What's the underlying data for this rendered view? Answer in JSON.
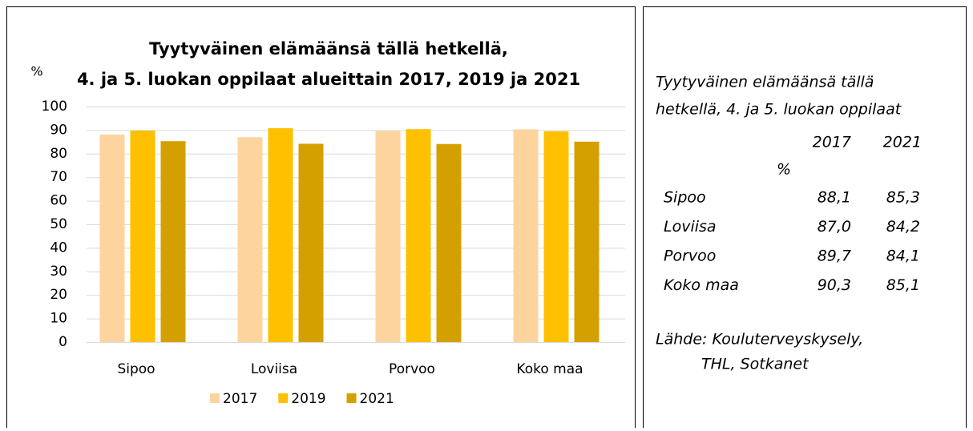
{
  "chart_data": {
    "type": "bar",
    "title": [
      "Tyytyväinen elämäänsä tällä hetkellä,",
      "4. ja 5. luokan oppilaat alueittain 2017, 2019 ja 2021"
    ],
    "y_label": "%",
    "categories": [
      "Sipoo",
      "Loviisa",
      "Porvoo",
      "Koko maa"
    ],
    "series": [
      {
        "name": "2017",
        "color": "#fdd49e",
        "values": [
          88.1,
          87.0,
          89.7,
          90.3
        ]
      },
      {
        "name": "2019",
        "color": "#ffc000",
        "values": [
          89.8,
          90.8,
          90.4,
          89.5
        ]
      },
      {
        "name": "2021",
        "color": "#d4a000",
        "values": [
          85.3,
          84.2,
          84.1,
          85.1
        ]
      }
    ],
    "ylim": [
      0,
      100
    ],
    "yticks": [
      0,
      10,
      20,
      30,
      40,
      50,
      60,
      70,
      80,
      90,
      100
    ],
    "grid": true,
    "legend": "bottom"
  },
  "side_panel": {
    "title": [
      "Tyytyväinen elämäänsä tällä",
      "hetkellä, 4. ja 5. luokan oppilaat"
    ],
    "table": {
      "header": [
        "2017",
        "2021"
      ],
      "unit": "%",
      "rows": [
        [
          "Sipoo",
          "88,1",
          "85,3"
        ],
        [
          "Loviisa",
          "87,0",
          "84,2"
        ],
        [
          "Porvoo",
          "89,7",
          "84,1"
        ],
        [
          "Koko maa",
          "90,3",
          "85,1"
        ]
      ]
    },
    "source": [
      "Lähde: Kouluterveyskysely,",
      "THL, Sotkanet"
    ]
  }
}
